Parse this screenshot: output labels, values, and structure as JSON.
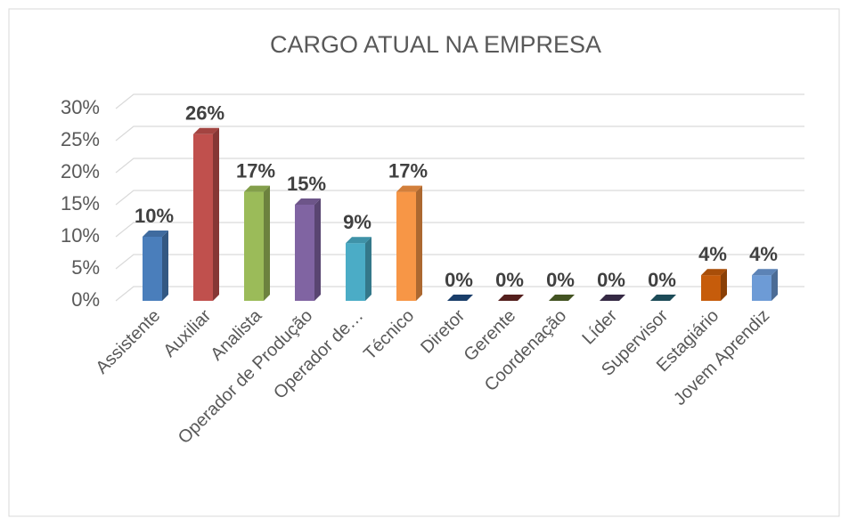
{
  "chart_data": {
    "type": "bar3d",
    "title": "CARGO ATUAL NA EMPRESA",
    "categories": [
      "Assistente",
      "Auxiliar",
      "Analista",
      "Operador de Produção",
      "Operador de…",
      "Técnico",
      "Diretor",
      "Gerente",
      "Coordenação",
      "Líder",
      "Supervisor",
      "Estagiário",
      "Jovem Aprendiz"
    ],
    "values": [
      10,
      26,
      17,
      15,
      9,
      17,
      0,
      0,
      0,
      0,
      0,
      4,
      4
    ],
    "value_labels": [
      "10%",
      "26%",
      "17%",
      "15%",
      "9%",
      "17%",
      "0%",
      "0%",
      "0%",
      "0%",
      "0%",
      "4%",
      "4%"
    ],
    "colors": [
      "#4a7ebb",
      "#c0504d",
      "#9bbb59",
      "#8064a2",
      "#4bacc6",
      "#f79646",
      "#1f497d",
      "#632523",
      "#4f6228",
      "#3f3151",
      "#215968",
      "#c65c0b",
      "#6d9bd6"
    ],
    "ylim": [
      0,
      30
    ],
    "yticks": [
      {
        "value": 0,
        "label": "0%"
      },
      {
        "value": 5,
        "label": "5%"
      },
      {
        "value": 10,
        "label": "10%"
      },
      {
        "value": 15,
        "label": "15%"
      },
      {
        "value": 20,
        "label": "20%"
      },
      {
        "value": 25,
        "label": "25%"
      },
      {
        "value": 30,
        "label": "30%"
      }
    ],
    "grid": true
  }
}
